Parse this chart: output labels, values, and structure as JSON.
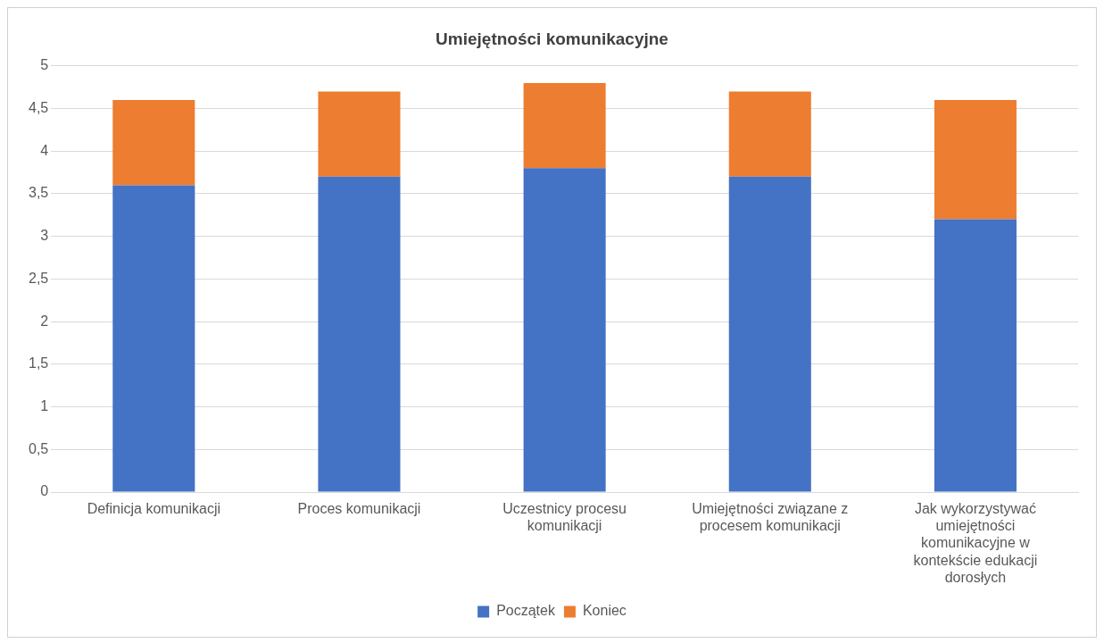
{
  "chart_data": {
    "type": "bar",
    "title": "Umiejętności komunikacyjne",
    "categories": [
      "Definicja komunikacji",
      "Proces komunikacji",
      "Uczestnicy procesu komunikacji",
      "Umiejętności związane z procesem komunikacji",
      "Jak wykorzystywać umiejętności komunikacyjne w kontekście edukacji dorosłych"
    ],
    "series": [
      {
        "name": "Początek",
        "color": "#4472c4",
        "values": [
          3.6,
          3.7,
          3.8,
          3.7,
          3.2
        ]
      },
      {
        "name": "Koniec",
        "color": "#ed7d31",
        "values": [
          1.0,
          1.0,
          1.0,
          1.0,
          1.4
        ]
      }
    ],
    "stacked": true,
    "ylim": [
      0,
      5
    ],
    "yticks": [
      0,
      {
        "value": 0.5,
        "label": "0,5"
      },
      1,
      {
        "value": 1.5,
        "label": "1,5"
      },
      2,
      {
        "value": 2.5,
        "label": "2,5"
      },
      3,
      {
        "value": 3.5,
        "label": "3,5"
      },
      4,
      {
        "value": 4.5,
        "label": "4,5"
      },
      5
    ],
    "grid": "y",
    "legend": "bottom"
  }
}
